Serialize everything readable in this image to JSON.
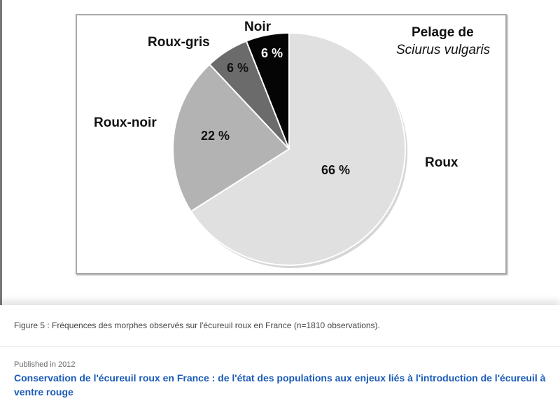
{
  "figure": {
    "title_line1": "Pelage de",
    "title_line2": "Sciurus vulgaris",
    "slices": [
      {
        "label": "Roux",
        "pct_label": "66 %",
        "value": 66,
        "color": "#e0e0e0"
      },
      {
        "label": "Roux-noir",
        "pct_label": "22 %",
        "value": 22,
        "color": "#b3b3b3"
      },
      {
        "label": "Roux-gris",
        "pct_label": "6 %",
        "value": 6,
        "color": "#6b6b6b"
      },
      {
        "label": "Noir",
        "pct_label": "6 %",
        "value": 6,
        "color": "#050505"
      }
    ]
  },
  "chart_data": {
    "type": "pie",
    "title": "Pelage de Sciurus vulgaris",
    "categories": [
      "Roux",
      "Roux-noir",
      "Roux-gris",
      "Noir"
    ],
    "values": [
      66,
      22,
      6,
      6
    ],
    "unit": "%"
  },
  "panel": {
    "caption": "Figure 5 : Fréquences des morphes observés sur l'écureuil roux en France (n=1810 observations).",
    "published": "Published in 2012",
    "publication_title": "Conservation de l'écureuil roux en France : de l'état des populations aux enjeux liés à l'introduction de l'écureuil à ventre rouge"
  }
}
